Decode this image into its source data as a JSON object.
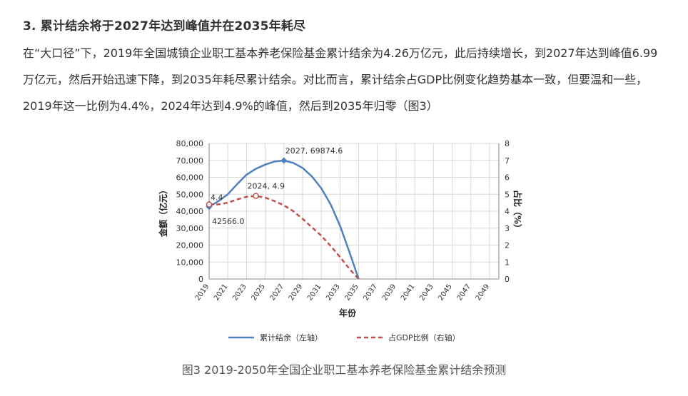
{
  "article": {
    "heading": "3. 累计结余将于2027年达到峰值并在2035年耗尽",
    "paragraph": "在“大口径”下，2019年全国城镇企业职工基本养老保险基金累计结余为4.26万亿元，此后持续增长，到2027年达到峰值6.99万亿元，然后开始迅速下降，到2035年耗尽累计结余。对比而言，累计结余占GDP比例变化趋势基本一致，但要温和一些，2019年这一比例为4.4%，2024年达到4.9%的峰值，然后到2035年归零（图3）"
  },
  "caption": "图3  2019-2050年全国企业职工基本养老保险基金累计结余预测",
  "chart_data": {
    "type": "line",
    "xlabel": "年份",
    "ylabel_left": "金额（亿元）",
    "ylabel_right": "占比（%）",
    "x_ticks": [
      "2019",
      "2021",
      "2023",
      "2025",
      "2027",
      "2029",
      "2031",
      "2033",
      "2035",
      "2037",
      "2039",
      "2041",
      "2043",
      "2045",
      "2047",
      "2049"
    ],
    "xlim": [
      2019,
      2050
    ],
    "ylim_left": [
      0,
      80000
    ],
    "ylim_right": [
      0,
      8
    ],
    "y_ticks_left": [
      "0",
      "10,000",
      "20,000",
      "30,000",
      "40,000",
      "50,000",
      "60,000",
      "70,000",
      "80,000"
    ],
    "y_ticks_right": [
      "0",
      "1",
      "2",
      "3",
      "4",
      "5",
      "6",
      "7",
      "8"
    ],
    "grid": true,
    "legend_position": "bottom",
    "series": [
      {
        "name": "累计结余（左轴）",
        "axis": "left",
        "style": "solid",
        "color": "#4f81bd",
        "x": [
          2019,
          2020,
          2021,
          2022,
          2023,
          2024,
          2025,
          2026,
          2027,
          2028,
          2029,
          2030,
          2031,
          2032,
          2033,
          2034,
          2035
        ],
        "y": [
          42566.0,
          46000,
          50000,
          56000,
          61500,
          65000,
          67500,
          69300,
          69874.6,
          68500,
          65500,
          60500,
          53500,
          44000,
          31500,
          16000,
          0
        ]
      },
      {
        "name": "占GDP比例（右轴）",
        "axis": "right",
        "style": "dashed",
        "color": "#c0504d",
        "x": [
          2019,
          2020,
          2021,
          2022,
          2023,
          2024,
          2025,
          2026,
          2027,
          2028,
          2029,
          2030,
          2031,
          2032,
          2033,
          2034,
          2035
        ],
        "y": [
          4.4,
          4.4,
          4.5,
          4.7,
          4.85,
          4.9,
          4.8,
          4.6,
          4.35,
          4.0,
          3.55,
          3.05,
          2.55,
          1.95,
          1.3,
          0.6,
          0
        ]
      }
    ],
    "annotations": [
      {
        "text": "2027, 69874.6",
        "series": 0,
        "x": 2027
      },
      {
        "text": "42566.0",
        "series": 0,
        "x": 2019
      },
      {
        "text": "2024, 4.9",
        "series": 1,
        "x": 2024
      },
      {
        "text": "4.4",
        "series": 1,
        "x": 2019
      }
    ]
  }
}
